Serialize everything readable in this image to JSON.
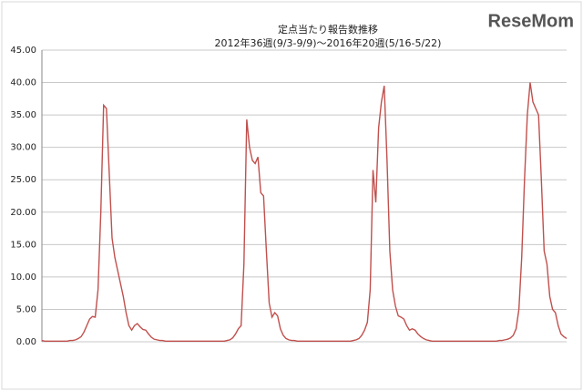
{
  "chart_data": {
    "type": "line",
    "title": "定点当たり報告数推移",
    "subtitle": "2012年36週(9/3-9/9)～2016年20週(5/16-5/22)",
    "watermark": "ReseMom",
    "color": "#c0504d",
    "grid": true,
    "ylim": [
      0,
      45
    ],
    "yticks": [
      {
        "value": 0,
        "label": "0.00"
      },
      {
        "value": 5,
        "label": "5.00"
      },
      {
        "value": 10,
        "label": "10.00"
      },
      {
        "value": 15,
        "label": "15.00"
      },
      {
        "value": 20,
        "label": "20.00"
      },
      {
        "value": 25,
        "label": "25.00"
      },
      {
        "value": 30,
        "label": "30.00"
      },
      {
        "value": 35,
        "label": "35.00"
      },
      {
        "value": 40,
        "label": "40.00"
      },
      {
        "value": 45,
        "label": "45.00"
      }
    ],
    "values": [
      0.2,
      0.1,
      0.1,
      0.1,
      0.1,
      0.1,
      0.1,
      0.1,
      0.1,
      0.1,
      0.2,
      0.2,
      0.3,
      0.5,
      0.8,
      1.5,
      2.5,
      3.5,
      3.9,
      3.8,
      8.0,
      20.0,
      36.5,
      36.0,
      26.0,
      16.0,
      13.0,
      11.0,
      9.0,
      7.0,
      4.5,
      2.5,
      1.8,
      2.5,
      2.8,
      2.3,
      1.9,
      1.8,
      1.2,
      0.7,
      0.4,
      0.3,
      0.2,
      0.2,
      0.1,
      0.1,
      0.1,
      0.1,
      0.1,
      0.1,
      0.1,
      0.1,
      0.1,
      0.1,
      0.1,
      0.1,
      0.1,
      0.1,
      0.1,
      0.1,
      0.1,
      0.1,
      0.1,
      0.1,
      0.1,
      0.1,
      0.2,
      0.3,
      0.6,
      1.2,
      2.0,
      2.5,
      12.0,
      34.3,
      30.0,
      28.0,
      27.5,
      28.5,
      23.0,
      22.5,
      14.0,
      6.0,
      3.8,
      4.5,
      4.0,
      2.0,
      1.0,
      0.5,
      0.3,
      0.2,
      0.2,
      0.1,
      0.1,
      0.1,
      0.1,
      0.1,
      0.1,
      0.1,
      0.1,
      0.1,
      0.1,
      0.1,
      0.1,
      0.1,
      0.1,
      0.1,
      0.1,
      0.1,
      0.1,
      0.1,
      0.1,
      0.2,
      0.3,
      0.5,
      1.0,
      1.8,
      3.0,
      8.0,
      26.5,
      21.5,
      33.0,
      37.0,
      39.5,
      28.0,
      14.0,
      8.0,
      5.5,
      4.0,
      3.8,
      3.5,
      2.5,
      1.8,
      2.0,
      1.8,
      1.2,
      0.8,
      0.5,
      0.3,
      0.2,
      0.1,
      0.1,
      0.1,
      0.1,
      0.1,
      0.1,
      0.1,
      0.1,
      0.1,
      0.1,
      0.1,
      0.1,
      0.1,
      0.1,
      0.1,
      0.1,
      0.1,
      0.1,
      0.1,
      0.1,
      0.1,
      0.1,
      0.1,
      0.1,
      0.2,
      0.2,
      0.3,
      0.4,
      0.6,
      1.0,
      2.0,
      5.0,
      13.0,
      25.0,
      35.0,
      40.0,
      37.0,
      36.0,
      35.0,
      25.0,
      14.0,
      12.0,
      7.0,
      5.0,
      4.5,
      2.5,
      1.2,
      0.8,
      0.5
    ]
  }
}
